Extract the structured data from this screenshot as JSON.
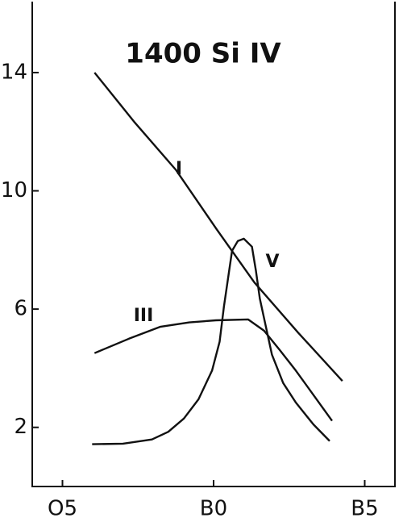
{
  "chart_data": {
    "type": "line",
    "title": "1400 Si IV",
    "xlim": [
      -1,
      11
    ],
    "ylim": [
      0,
      16.4
    ],
    "xticks": [
      {
        "value": 0,
        "label": "O5"
      },
      {
        "value": 5,
        "label": "B0"
      },
      {
        "value": 10,
        "label": "B5"
      }
    ],
    "yticks": [
      2,
      6,
      10,
      14
    ],
    "grid": false,
    "series": [
      {
        "name": "I",
        "color": "#111111",
        "x": [
          1.06,
          2.4,
          3.76,
          5.1,
          6.35,
          7.8,
          9.26
        ],
        "values": [
          14,
          12.3,
          10.7,
          8.7,
          6.9,
          5.2,
          3.57
        ]
      },
      {
        "name": "III",
        "color": "#111111",
        "x": [
          1.06,
          2.2,
          3.23,
          4.2,
          5.08,
          6.14,
          6.67,
          7.2,
          7.72,
          8.3,
          8.92
        ],
        "values": [
          4.51,
          5.0,
          5.4,
          5.55,
          5.62,
          5.65,
          5.27,
          4.6,
          3.92,
          3.1,
          2.22
        ]
      },
      {
        "name": "V",
        "color": "#111111",
        "x": [
          0.98,
          2.0,
          2.96,
          3.5,
          4.02,
          4.5,
          4.95,
          5.2,
          5.34,
          5.61,
          5.8,
          6.0,
          6.27,
          6.4,
          6.53,
          6.93,
          7.3,
          7.72,
          8.3,
          8.84
        ],
        "values": [
          1.43,
          1.45,
          1.59,
          1.85,
          2.3,
          2.95,
          3.92,
          4.9,
          6.08,
          7.97,
          8.3,
          8.38,
          8.11,
          7.3,
          6.35,
          4.46,
          3.5,
          2.84,
          2.1,
          1.54
        ]
      }
    ]
  }
}
